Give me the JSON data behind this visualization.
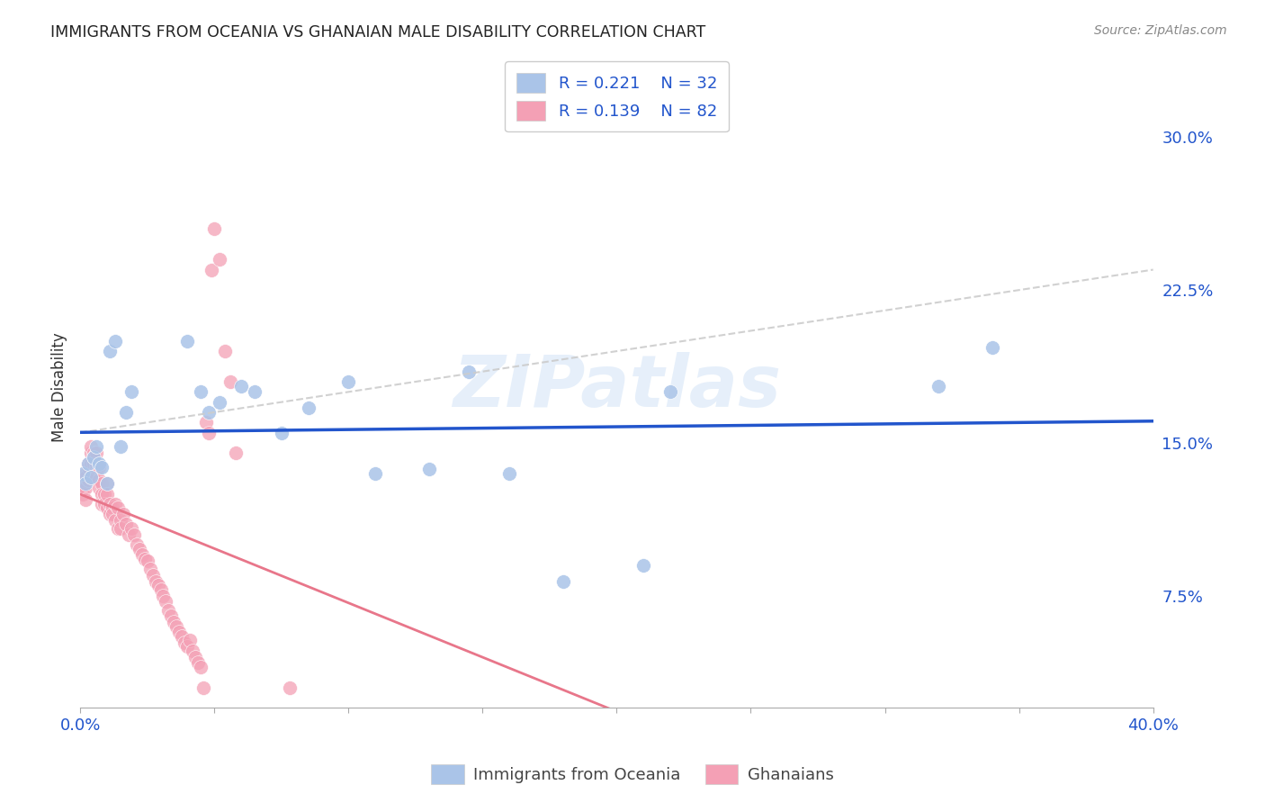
{
  "title": "IMMIGRANTS FROM OCEANIA VS GHANAIAN MALE DISABILITY CORRELATION CHART",
  "source": "Source: ZipAtlas.com",
  "ylabel": "Male Disability",
  "ytick_vals": [
    0.075,
    0.15,
    0.225,
    0.3
  ],
  "ytick_labels": [
    "7.5%",
    "15.0%",
    "22.5%",
    "30.0%"
  ],
  "legend1_R": "R = 0.221",
  "legend1_N": "N = 32",
  "legend2_R": "R = 0.139",
  "legend2_N": "N = 82",
  "legend_label1": "Immigrants from Oceania",
  "legend_label2": "Ghanaians",
  "color_blue": "#aac4e8",
  "color_pink": "#f4a0b5",
  "trend_blue": "#2255cc",
  "trend_pink": "#e8768a",
  "trend_gray_dashed": "#cccccc",
  "watermark": "ZIPatlas",
  "xlim": [
    0,
    0.4
  ],
  "ylim": [
    0.02,
    0.335
  ],
  "blue_x": [
    0.001,
    0.002,
    0.003,
    0.004,
    0.005,
    0.006,
    0.007,
    0.008,
    0.01,
    0.011,
    0.013,
    0.015,
    0.017,
    0.019,
    0.04,
    0.045,
    0.048,
    0.052,
    0.06,
    0.065,
    0.075,
    0.085,
    0.1,
    0.11,
    0.13,
    0.145,
    0.16,
    0.18,
    0.21,
    0.22,
    0.32,
    0.34
  ],
  "blue_y": [
    0.135,
    0.13,
    0.14,
    0.133,
    0.143,
    0.148,
    0.14,
    0.138,
    0.13,
    0.195,
    0.2,
    0.148,
    0.165,
    0.175,
    0.2,
    0.175,
    0.165,
    0.17,
    0.178,
    0.175,
    0.155,
    0.167,
    0.18,
    0.135,
    0.137,
    0.185,
    0.135,
    0.082,
    0.09,
    0.175,
    0.178,
    0.197
  ],
  "pink_x": [
    0.001,
    0.001,
    0.001,
    0.001,
    0.002,
    0.002,
    0.002,
    0.002,
    0.003,
    0.003,
    0.003,
    0.004,
    0.004,
    0.004,
    0.005,
    0.005,
    0.005,
    0.006,
    0.006,
    0.006,
    0.006,
    0.007,
    0.007,
    0.007,
    0.008,
    0.008,
    0.008,
    0.009,
    0.009,
    0.01,
    0.01,
    0.01,
    0.011,
    0.011,
    0.012,
    0.012,
    0.013,
    0.013,
    0.014,
    0.014,
    0.015,
    0.015,
    0.016,
    0.017,
    0.018,
    0.019,
    0.02,
    0.021,
    0.022,
    0.023,
    0.024,
    0.025,
    0.026,
    0.027,
    0.028,
    0.029,
    0.03,
    0.031,
    0.032,
    0.033,
    0.034,
    0.035,
    0.036,
    0.037,
    0.038,
    0.039,
    0.04,
    0.041,
    0.042,
    0.043,
    0.044,
    0.045,
    0.046,
    0.047,
    0.048,
    0.049,
    0.05,
    0.052,
    0.054,
    0.056,
    0.058,
    0.078
  ],
  "pink_y": [
    0.13,
    0.133,
    0.128,
    0.125,
    0.135,
    0.133,
    0.128,
    0.122,
    0.14,
    0.138,
    0.132,
    0.14,
    0.145,
    0.148,
    0.145,
    0.143,
    0.14,
    0.138,
    0.133,
    0.14,
    0.145,
    0.138,
    0.132,
    0.128,
    0.13,
    0.125,
    0.12,
    0.125,
    0.12,
    0.13,
    0.125,
    0.118,
    0.12,
    0.115,
    0.118,
    0.115,
    0.12,
    0.112,
    0.118,
    0.108,
    0.112,
    0.108,
    0.115,
    0.11,
    0.105,
    0.108,
    0.105,
    0.1,
    0.098,
    0.095,
    0.093,
    0.092,
    0.088,
    0.085,
    0.082,
    0.08,
    0.078,
    0.075,
    0.072,
    0.068,
    0.065,
    0.062,
    0.06,
    0.057,
    0.055,
    0.052,
    0.05,
    0.053,
    0.048,
    0.045,
    0.042,
    0.04,
    0.03,
    0.16,
    0.155,
    0.235,
    0.255,
    0.24,
    0.195,
    0.18,
    0.145,
    0.03
  ]
}
